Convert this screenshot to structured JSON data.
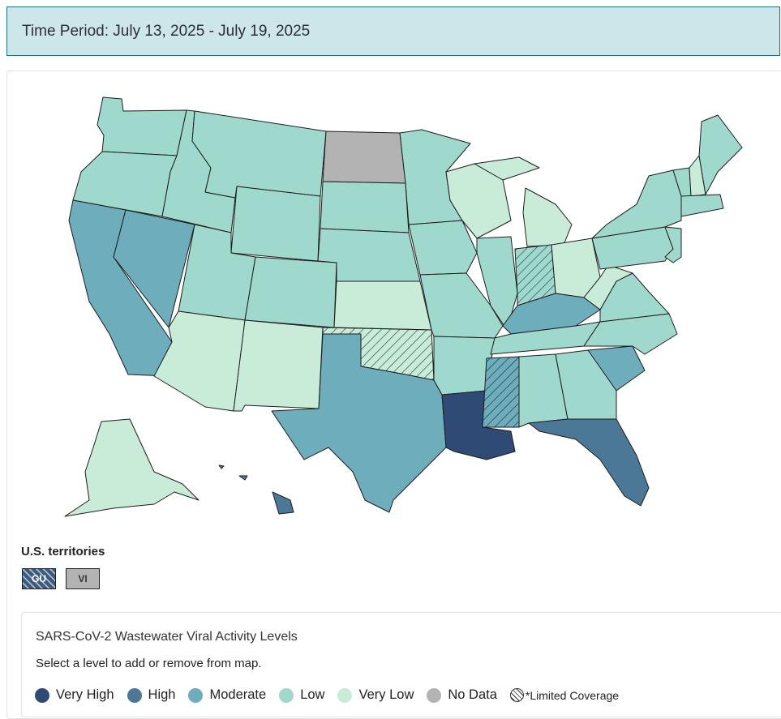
{
  "header": {
    "time_period": "Time Period: July 13, 2025 - July 19, 2025"
  },
  "colors": {
    "very_high": "#2f4b75",
    "high": "#4b7896",
    "moderate": "#6eadbb",
    "low": "#9fd9cd",
    "very_low": "#c9ecd9",
    "no_data": "#b3b3b3"
  },
  "territories": {
    "label": "U.S. territories",
    "items": [
      "GU",
      "VI"
    ]
  },
  "legend": {
    "title": "SARS-CoV-2 Wastewater Viral Activity Levels",
    "subtitle": "Select a level to add or remove from map.",
    "levels": [
      "Very High",
      "High",
      "Moderate",
      "Low",
      "Very Low",
      "No Data"
    ],
    "limited": "*Limited Coverage"
  },
  "states": {
    "WA": "low",
    "OR": "low",
    "CA": "moderate",
    "NV": "moderate",
    "ID": "low",
    "MT": "low",
    "WY": "low",
    "UT": "low",
    "AZ": "very_low",
    "CO": "low",
    "NM": "very_low",
    "ND": "no_data",
    "SD": "low",
    "NE": "low",
    "KS": "very_low",
    "OK": "very_low_limited",
    "TX": "moderate",
    "MN": "low",
    "IA": "low",
    "MO": "low",
    "AR": "low",
    "LA": "very_high",
    "WI": "very_low",
    "IL": "low",
    "MI": "very_low",
    "IN": "low_limited",
    "OH": "very_low",
    "KY": "moderate",
    "TN": "low",
    "MS": "moderate_limited",
    "AL": "low",
    "GA": "low",
    "FL": "high",
    "SC": "moderate",
    "NC": "low",
    "VA": "low",
    "WV": "very_low",
    "PA": "low",
    "NY": "low",
    "ME": "low",
    "NH": "very_low",
    "VT": "low",
    "MA": "low",
    "NJ": "low",
    "AK": "very_low",
    "HI": "high"
  }
}
